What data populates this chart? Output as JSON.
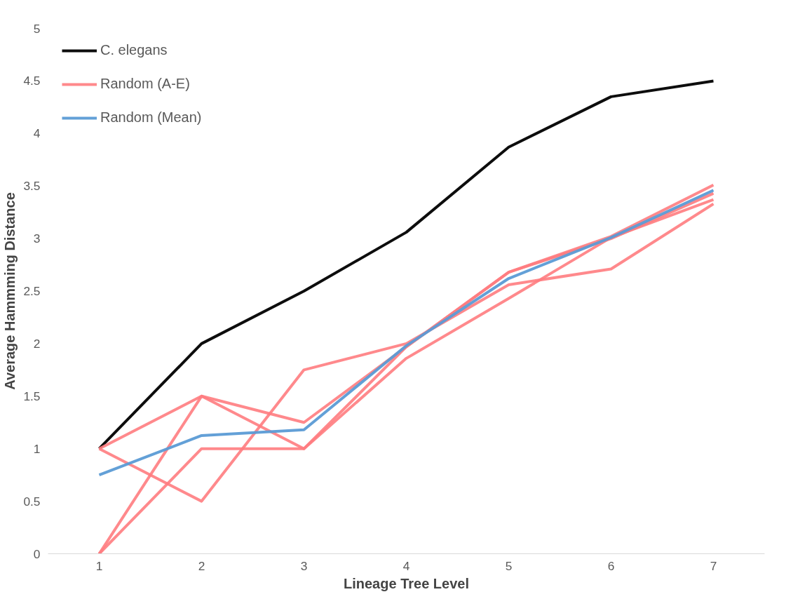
{
  "chart_data": {
    "type": "line",
    "xlabel": "Lineage Tree Level",
    "ylabel": "Average Hammming Distance",
    "categories": [
      "1",
      "2",
      "3",
      "4",
      "5",
      "6",
      "7"
    ],
    "series": [
      {
        "name": "C. elegans",
        "color": "#000000",
        "values": [
          1,
          2,
          2.5,
          3.06,
          3.87,
          4.35,
          4.5
        ]
      },
      {
        "name": "Random (A-E)",
        "color": "#ff7c80",
        "values": [
          1,
          1.5,
          1.0,
          1.97,
          2.68,
          3.02,
          3.51
        ]
      },
      {
        "color": "#ff7c80",
        "values": [
          1,
          0.5,
          1.75,
          2.0,
          2.56,
          2.71,
          3.33
        ]
      },
      {
        "color": "#ff7c80",
        "values": [
          0,
          1.5,
          1.25,
          1.97,
          2.68,
          3.0,
          3.43
        ]
      },
      {
        "color": "#ff7c80",
        "values": [
          0,
          1.0,
          1.0,
          1.86,
          2.43,
          3.01,
          3.37
        ]
      },
      {
        "name": "Random (Mean)",
        "color": "#5b9bd5",
        "values": [
          0.75,
          1.125,
          1.18,
          1.98,
          2.62,
          3.01,
          3.46
        ]
      }
    ],
    "ylim": [
      0,
      5
    ],
    "yticks": [
      0,
      0.5,
      1,
      1.5,
      2,
      2.5,
      3,
      3.5,
      4,
      4.5,
      5
    ],
    "grid": false,
    "legend": "top left",
    "marker": "none",
    "line_style": "solid"
  }
}
